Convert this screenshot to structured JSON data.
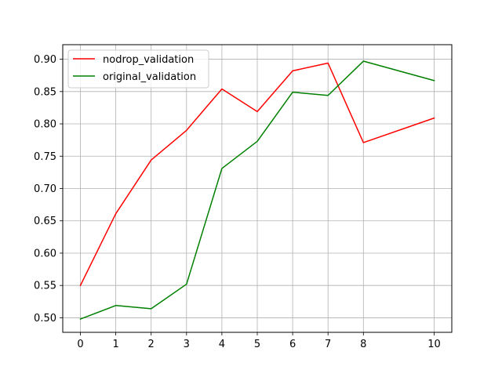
{
  "chart_data": {
    "type": "line",
    "title": "",
    "xlabel": "",
    "ylabel": "",
    "x": [
      0,
      1,
      2,
      3,
      4,
      5,
      6,
      7,
      8,
      10
    ],
    "x_ticks": [
      "0",
      "1",
      "2",
      "3",
      "4",
      "5",
      "6",
      "7",
      "8",
      "10"
    ],
    "y_ticks": [
      "0.50",
      "0.55",
      "0.60",
      "0.65",
      "0.70",
      "0.75",
      "0.80",
      "0.85",
      "0.90"
    ],
    "ylim": [
      0.4775,
      0.9225
    ],
    "grid": true,
    "legend_position": "top-left",
    "series": [
      {
        "name": "nodrop_validation",
        "color": "#ff0000",
        "values": [
          0.55,
          0.661,
          0.744,
          0.79,
          0.854,
          0.819,
          0.882,
          0.894,
          0.771,
          0.809
        ]
      },
      {
        "name": "original_validation",
        "color": "#008000",
        "values": [
          0.498,
          0.519,
          0.514,
          0.552,
          0.731,
          0.773,
          0.849,
          0.844,
          0.897,
          0.867
        ]
      }
    ]
  }
}
